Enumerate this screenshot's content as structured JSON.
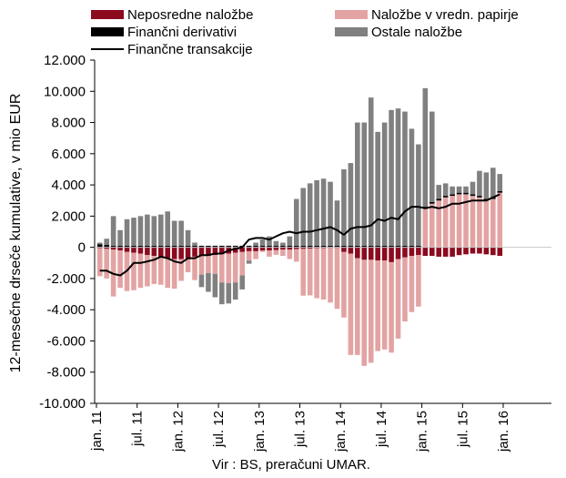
{
  "chart_data": {
    "type": "bar",
    "stacked": true,
    "ylabel": "12-mesečne drseče kumulative, v mio EUR",
    "source": "Vir : BS, preračuni UMAR.",
    "ylim": [
      -10000,
      12000
    ],
    "ytick_values": [
      -10000,
      -8000,
      -6000,
      -4000,
      -2000,
      0,
      2000,
      4000,
      6000,
      8000,
      10000,
      12000
    ],
    "ytick_labels": [
      "-10.000",
      "-8.000",
      "-6.000",
      "-4.000",
      "-2.000",
      "0",
      "2.000",
      "4.000",
      "6.000",
      "8.000",
      "10.000",
      "12.000"
    ],
    "xtick_labels": [
      "jan. 11",
      "jul. 11",
      "jan. 12",
      "jul. 12",
      "jan. 13",
      "jul. 13",
      "jan. 14",
      "jul. 14",
      "jan. 15",
      "jul. 15",
      "jan. 16"
    ],
    "xtick_months": [
      0,
      6,
      12,
      18,
      24,
      30,
      36,
      42,
      48,
      54,
      60
    ],
    "grid": false,
    "legend_position": "top",
    "colors": {
      "direct": "#8b0a1e",
      "portfolio": "#e3a3a3",
      "derivatives": "#000000",
      "other": "#808080",
      "total_line": "#000000"
    },
    "series": [
      {
        "key": "direct",
        "name": "Neposredne naložbe",
        "values": [
          -50,
          -100,
          -150,
          -200,
          -300,
          -350,
          -400,
          -500,
          -550,
          -600,
          -700,
          -750,
          -750,
          -700,
          -600,
          -550,
          -550,
          -500,
          -450,
          -400,
          -350,
          -300,
          -250,
          -250,
          -200,
          -200,
          -180,
          -150,
          -150,
          -120,
          -100,
          -80,
          -60,
          -50,
          -40,
          -40,
          -300,
          -400,
          -700,
          -800,
          -800,
          -850,
          -850,
          -950,
          -750,
          -650,
          -550,
          -500,
          -550,
          -550,
          -600,
          -600,
          -600,
          -500,
          -450,
          -400,
          -400,
          -450,
          -500,
          -550
        ]
      },
      {
        "key": "portfolio",
        "name": "Naložbe v vredn. papirje",
        "values": [
          -1800,
          -1900,
          -3000,
          -2400,
          -2500,
          -2400,
          -2200,
          -2000,
          -1800,
          -1800,
          -1900,
          -1900,
          -1400,
          -900,
          -1500,
          -1200,
          -1100,
          -1200,
          -1800,
          -1900,
          -1900,
          -1500,
          -600,
          -500,
          -100,
          -400,
          -300,
          -400,
          -600,
          -800,
          -3000,
          -3000,
          -3200,
          -3300,
          -3500,
          -3900,
          -4200,
          -6500,
          -6200,
          -6800,
          -6600,
          -5800,
          -5700,
          -5800,
          -5100,
          -4100,
          -3600,
          -3300,
          2500,
          2800,
          3000,
          3200,
          3300,
          3400,
          3400,
          3300,
          3200,
          3000,
          3100,
          3500
        ]
      },
      {
        "key": "derivatives",
        "name": "Finančni derivativi",
        "values": [
          200,
          150,
          100,
          100,
          100,
          100,
          100,
          100,
          100,
          100,
          100,
          100,
          100,
          100,
          100,
          100,
          100,
          100,
          100,
          100,
          100,
          100,
          100,
          100,
          100,
          100,
          100,
          100,
          100,
          100,
          100,
          100,
          100,
          100,
          100,
          100,
          100,
          100,
          100,
          100,
          100,
          100,
          100,
          100,
          100,
          100,
          100,
          100,
          100,
          100,
          100,
          100,
          100,
          100,
          100,
          100,
          100,
          100,
          100,
          100
        ]
      },
      {
        "key": "other",
        "name": "Ostale naložbe",
        "values": [
          100,
          400,
          1900,
          1000,
          1700,
          1800,
          1900,
          2000,
          1900,
          2000,
          2200,
          1600,
          1600,
          1000,
          200,
          -800,
          -1200,
          -1500,
          -1400,
          -1300,
          -1100,
          -900,
          -200,
          200,
          400,
          600,
          300,
          200,
          600,
          3000,
          3700,
          4000,
          4200,
          4300,
          4100,
          2900,
          4900,
          5300,
          7900,
          7900,
          9500,
          7300,
          7900,
          8700,
          8800,
          8600,
          7500,
          6500,
          7600,
          5800,
          900,
          800,
          500,
          400,
          400,
          800,
          1600,
          1700,
          1900,
          1100
        ]
      },
      {
        "key": "total_line",
        "name": "Finančne transakcije",
        "type": "line",
        "values": [
          -1500,
          -1500,
          -1700,
          -1800,
          -1500,
          -1000,
          -1000,
          -900,
          -800,
          -600,
          -700,
          -900,
          -1000,
          -700,
          -700,
          -500,
          -500,
          -400,
          -400,
          -200,
          -100,
          0,
          500,
          600,
          600,
          500,
          700,
          900,
          1000,
          900,
          1000,
          1000,
          1100,
          1200,
          1300,
          1100,
          800,
          1200,
          1300,
          1300,
          1400,
          1800,
          1700,
          1900,
          1800,
          2300,
          2600,
          2600,
          2500,
          2600,
          2500,
          2600,
          2800,
          2800,
          2900,
          3000,
          3000,
          3000,
          3200,
          3400
        ]
      }
    ]
  }
}
